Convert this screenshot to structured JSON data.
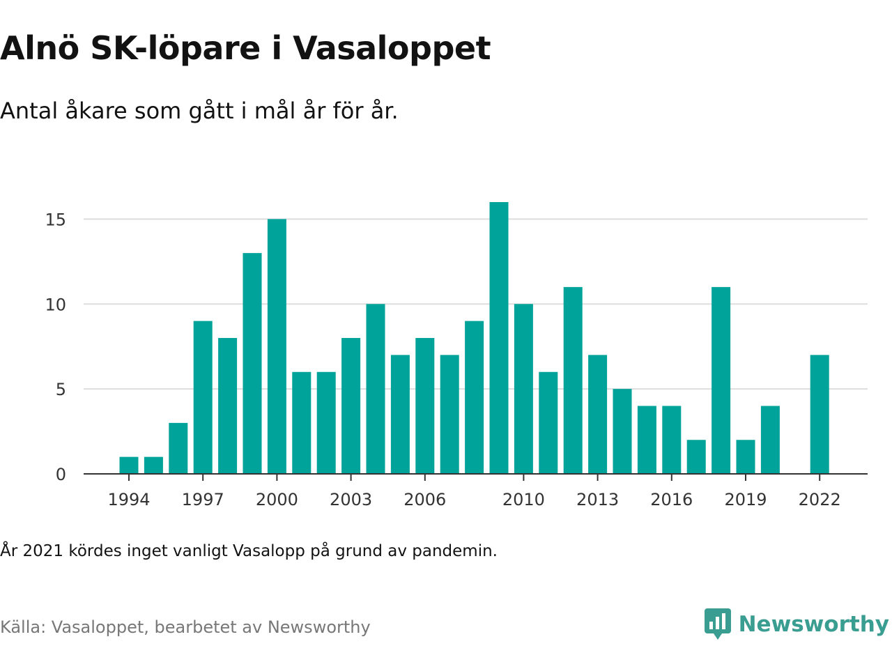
{
  "title": "Alnö SK-löpare i Vasaloppet",
  "subtitle": "Antal åkare som gått i mål år för år.",
  "note": "År 2021 kördes inget vanligt Vasalopp på grund av pandemin.",
  "source": "Källa: Vasaloppet, bearbetet av Newsworthy",
  "brand": {
    "name": "Newsworthy",
    "icon": "newsworthy-logo-icon",
    "color": "#3a9d91"
  },
  "chart_data": {
    "type": "bar",
    "color": "#00a39a",
    "categories": [
      1994,
      1995,
      1996,
      1997,
      1998,
      1999,
      2000,
      2001,
      2002,
      2003,
      2004,
      2005,
      2006,
      2007,
      2008,
      2009,
      2010,
      2011,
      2012,
      2013,
      2014,
      2015,
      2016,
      2017,
      2018,
      2019,
      2020,
      2021,
      2022
    ],
    "values": [
      1,
      1,
      3,
      9,
      8,
      13,
      15,
      6,
      6,
      8,
      10,
      7,
      8,
      7,
      9,
      16,
      10,
      6,
      11,
      7,
      5,
      4,
      4,
      2,
      11,
      2,
      4,
      null,
      7
    ],
    "x_tick_labels": [
      "1994",
      "1997",
      "2000",
      "2003",
      "2006",
      "2010",
      "2013",
      "2016",
      "2019",
      "2022"
    ],
    "y_ticks": [
      0,
      5,
      10,
      15
    ],
    "ylim": [
      0,
      16
    ],
    "grid": true
  }
}
